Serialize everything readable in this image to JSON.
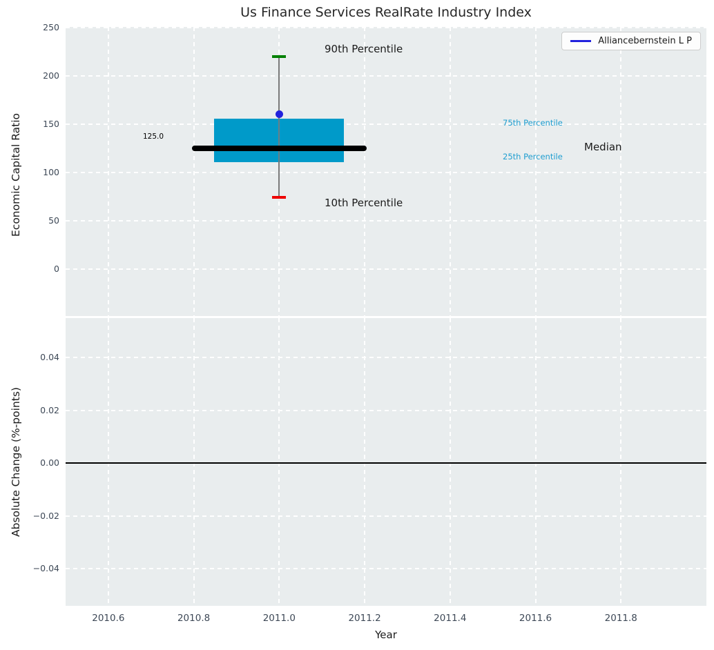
{
  "title": "Us Finance Services RealRate Industry Index",
  "legend": {
    "label": "Alliancebernstein L P",
    "line_color": "#2222dd"
  },
  "top_plot": {
    "ylabel": "Economic Capital Ratio",
    "yticks": [
      "250",
      "200",
      "150",
      "100",
      "50",
      "0"
    ],
    "ytick_values": [
      250,
      200,
      150,
      100,
      50,
      0
    ],
    "annotations": {
      "p90_label": "90th Percentile",
      "p10_label": "10th Percentile",
      "p75_label": "75th Percentile",
      "p25_label": "25th Percentile",
      "median_label": "Median",
      "median_value_label": "125.0"
    }
  },
  "bottom_plot": {
    "ylabel": "Absolute Change (%-points)",
    "yticks": [
      "0.04",
      "0.02",
      "0.00",
      "−0.02",
      "−0.04"
    ],
    "ytick_values": [
      0.04,
      0.02,
      0.0,
      -0.02,
      -0.04
    ]
  },
  "xaxis": {
    "label": "Year",
    "ticks": [
      "2010.6",
      "2010.8",
      "2011.0",
      "2011.2",
      "2011.4",
      "2011.6",
      "2011.8"
    ],
    "tick_values": [
      2010.6,
      2010.8,
      2011.0,
      2011.2,
      2011.4,
      2011.6,
      2011.8
    ]
  },
  "colors": {
    "plot_bg": "#e9edee",
    "grid": "#ffffff",
    "box_fill": "#009ac9",
    "median_line": "#000000",
    "whisker": "#7a7a7a",
    "p90_cap": "#008000",
    "p10_cap": "#ee0000",
    "company_marker": "#2222dd",
    "percentile_text": "#1f9ed0",
    "tick_text": "#3d4856",
    "zero_line": "#000000"
  },
  "chart_data": [
    {
      "type": "box",
      "title": "Us Finance Services RealRate Industry Index",
      "xlabel": "Year",
      "ylabel": "Economic Capital Ratio",
      "x_center": 2011.0,
      "whisker_high_p90": 220,
      "box_high_p75": 156,
      "median": 125.0,
      "box_low_p25": 111,
      "whisker_low_p10": 74,
      "company_point": {
        "name": "Alliancebernstein L P",
        "x": 2011.0,
        "y": 160
      },
      "xlim": [
        2010.5,
        2012.0
      ],
      "ylim": [
        -48.6,
        250.7
      ],
      "grid": true,
      "legend_position": "upper right",
      "geometry": {
        "box_halfwidth": 0.152,
        "median_halfwidth": 0.205,
        "cap_halfwidth": 0.016
      }
    },
    {
      "type": "line",
      "xlabel": "Year",
      "ylabel": "Absolute Change (%-points)",
      "series": [],
      "zero_line": 0.0,
      "xlim": [
        2010.5,
        2012.0
      ],
      "ylim": [
        -0.0541,
        0.055
      ],
      "grid": true
    }
  ]
}
